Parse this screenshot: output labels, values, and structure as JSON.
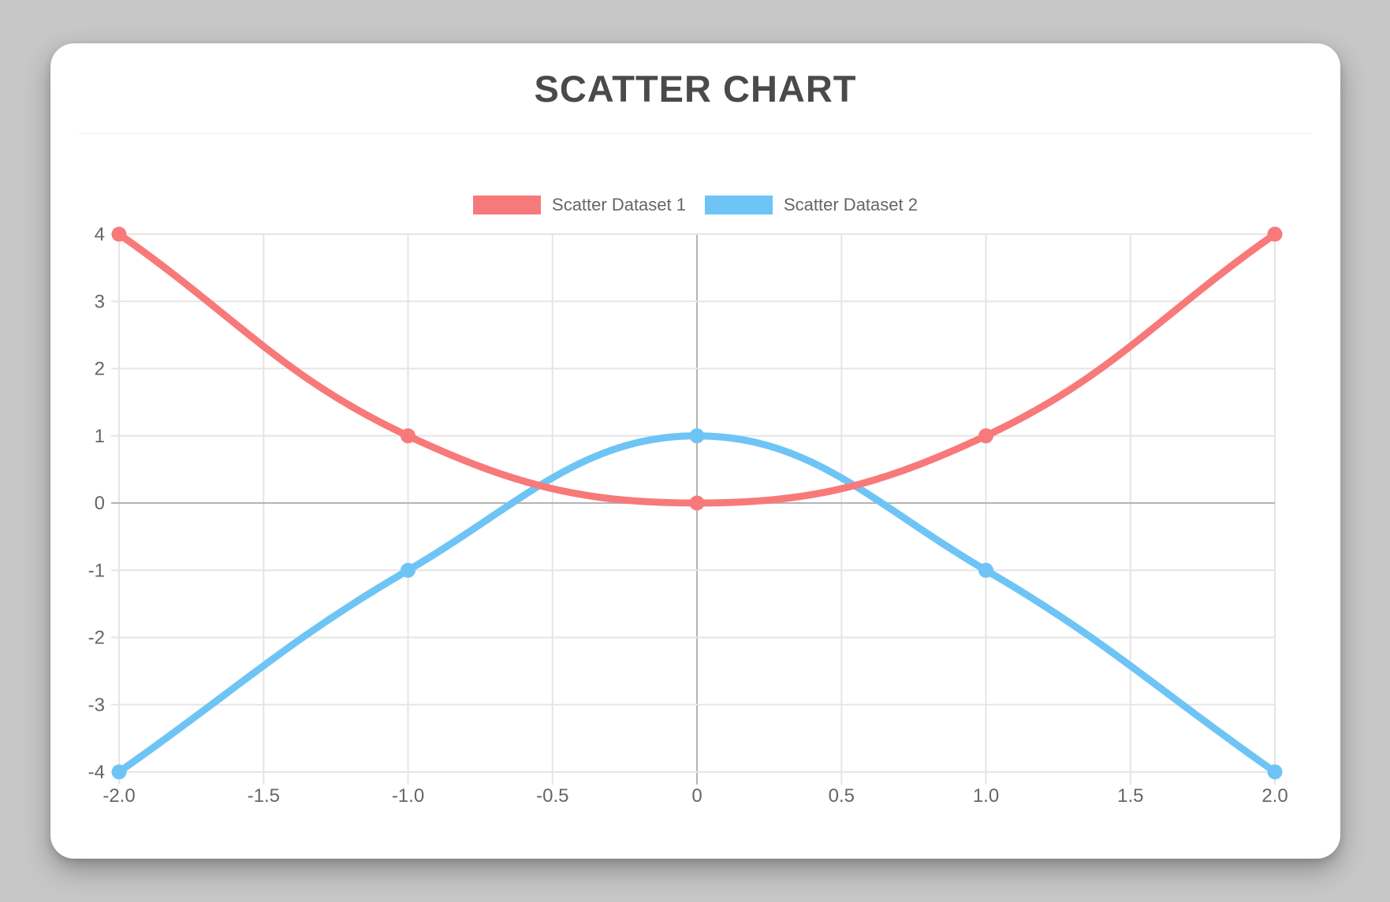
{
  "chart_data": {
    "type": "scatter",
    "title": "SCATTER CHART",
    "xlabel": "",
    "ylabel": "",
    "xlim": [
      -2,
      2
    ],
    "ylim": [
      -4,
      4
    ],
    "x_ticks": [
      "-2.0",
      "-1.5",
      "-1.0",
      "-0.5",
      "0",
      "0.5",
      "1.0",
      "1.5",
      "2.0"
    ],
    "y_ticks": [
      "4",
      "3",
      "2",
      "1",
      "0",
      "-1",
      "-2",
      "-3",
      "-4"
    ],
    "grid": true,
    "grid_color": "#e5e5e5",
    "zero_line_color": "#b4b4b4",
    "legend_position": "top",
    "line_tension": 0.4,
    "line_width": 9,
    "point_radius": 9.5,
    "series": [
      {
        "name": "Scatter Dataset 1",
        "color": "#F87979",
        "points": [
          [
            -2,
            4
          ],
          [
            -1,
            1
          ],
          [
            0,
            0
          ],
          [
            1,
            1
          ],
          [
            2,
            4
          ]
        ]
      },
      {
        "name": "Scatter Dataset 2",
        "color": "#6EC4F5",
        "points": [
          [
            -2,
            -4
          ],
          [
            -1,
            -1
          ],
          [
            0,
            1
          ],
          [
            1,
            -1
          ],
          [
            2,
            -4
          ]
        ]
      }
    ]
  }
}
